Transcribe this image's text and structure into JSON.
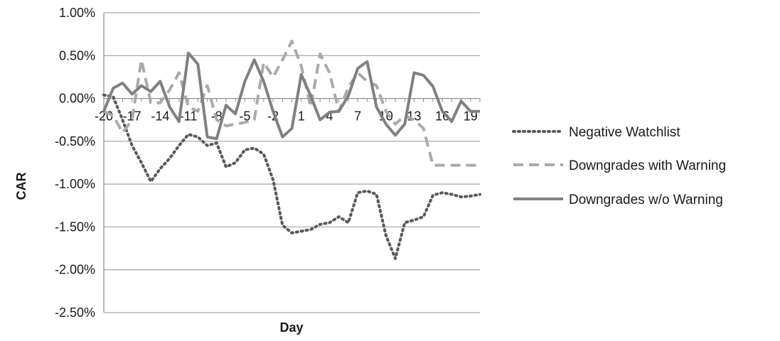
{
  "chart_data": {
    "type": "line",
    "xlabel": "Day",
    "ylabel": "CAR",
    "x": [
      -20,
      -19,
      -18,
      -17,
      -16,
      -15,
      -14,
      -13,
      -12,
      -11,
      -10,
      -9,
      -8,
      -7,
      -6,
      -5,
      -4,
      -3,
      -2,
      -1,
      0,
      1,
      2,
      3,
      4,
      5,
      6,
      7,
      8,
      9,
      10,
      11,
      12,
      13,
      14,
      15,
      16,
      17,
      18,
      19,
      20
    ],
    "x_tick_labels": [
      "-20",
      "-17",
      "-14",
      "-11",
      "-8",
      "-5",
      "-2",
      "1",
      "4",
      "7",
      "10",
      "13",
      "16",
      "19"
    ],
    "ylim": [
      -2.5,
      1.0
    ],
    "y_tick_labels": [
      "1.00%",
      "0.50%",
      "0.00%",
      "-0.50%",
      "-1.00%",
      "-1.50%",
      "-2.00%",
      "-2.50%"
    ],
    "y_ticks": [
      1.0,
      0.5,
      0.0,
      -0.5,
      -1.0,
      -1.5,
      -2.0,
      -2.5
    ],
    "grid": true,
    "legend_position": "right",
    "series": [
      {
        "name": "Negative Watchlist",
        "style": "dotted",
        "color": "#595959",
        "values": [
          0.04,
          0.02,
          -0.25,
          -0.55,
          -0.75,
          -0.97,
          -0.82,
          -0.7,
          -0.55,
          -0.42,
          -0.45,
          -0.55,
          -0.52,
          -0.8,
          -0.75,
          -0.6,
          -0.58,
          -0.65,
          -0.95,
          -1.48,
          -1.57,
          -1.55,
          -1.53,
          -1.47,
          -1.45,
          -1.38,
          -1.45,
          -1.1,
          -1.08,
          -1.12,
          -1.6,
          -1.87,
          -1.45,
          -1.42,
          -1.38,
          -1.13,
          -1.1,
          -1.12,
          -1.15,
          -1.14,
          -1.12
        ]
      },
      {
        "name": "Downgrades with Warning",
        "style": "dashed",
        "color": "#aaaaaa",
        "values": [
          -0.15,
          -0.2,
          -0.4,
          -0.25,
          0.45,
          -0.05,
          -0.05,
          0.1,
          0.3,
          -0.1,
          -0.15,
          0.15,
          -0.25,
          -0.32,
          -0.3,
          -0.28,
          -0.25,
          0.42,
          0.25,
          0.45,
          0.67,
          0.38,
          -0.1,
          0.52,
          0.3,
          -0.15,
          0.13,
          0.3,
          0.2,
          0.15,
          -0.15,
          -0.3,
          -0.2,
          -0.25,
          -0.35,
          -0.78,
          -0.78,
          -0.78,
          -0.78,
          -0.78,
          -0.78
        ]
      },
      {
        "name": "Downgrades w/o Warning",
        "style": "solid",
        "color": "#808080",
        "values": [
          -0.15,
          0.12,
          0.18,
          0.05,
          0.15,
          0.08,
          0.2,
          -0.1,
          -0.27,
          0.53,
          0.4,
          -0.45,
          -0.47,
          -0.08,
          -0.18,
          0.2,
          0.45,
          0.2,
          -0.15,
          -0.45,
          -0.35,
          0.28,
          0.03,
          -0.25,
          -0.16,
          -0.15,
          0.03,
          0.35,
          0.43,
          -0.1,
          -0.3,
          -0.43,
          -0.3,
          0.3,
          0.27,
          0.14,
          -0.15,
          -0.27,
          -0.03,
          -0.15,
          -0.15
        ]
      }
    ]
  }
}
